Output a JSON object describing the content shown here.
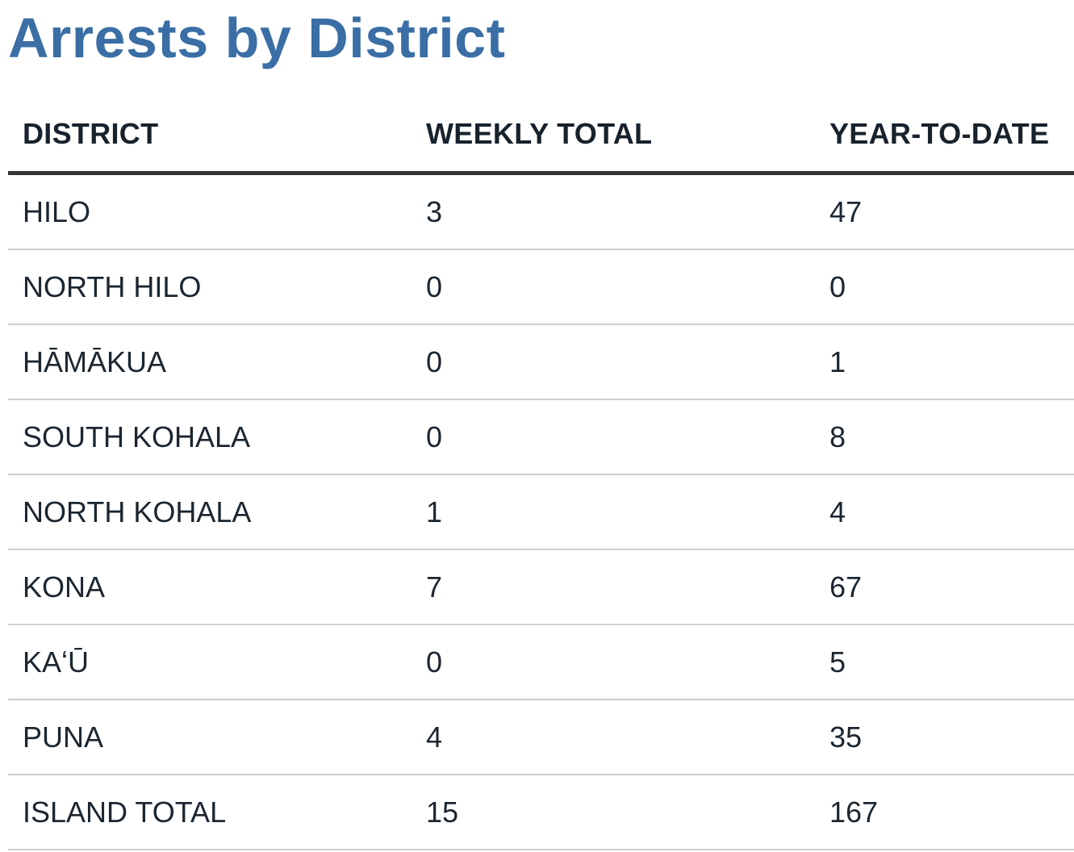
{
  "page": {
    "title": "Arrests by District",
    "title_color": "#3a6ea5"
  },
  "table": {
    "headers": [
      "DISTRICT",
      "WEEKLY TOTAL",
      "YEAR-TO-DATE"
    ],
    "rows": [
      [
        "HILO",
        "3",
        "47"
      ],
      [
        "NORTH HILO",
        "0",
        "0"
      ],
      [
        "HĀMĀKUA",
        "0",
        "1"
      ],
      [
        "SOUTH KOHALA",
        "0",
        "8"
      ],
      [
        "NORTH KOHALA",
        "1",
        "4"
      ],
      [
        "KONA",
        "7",
        "67"
      ],
      [
        "KAʻŪ",
        "0",
        "5"
      ],
      [
        "PUNA",
        "4",
        "35"
      ],
      [
        "ISLAND TOTAL",
        "15",
        "167"
      ]
    ]
  }
}
